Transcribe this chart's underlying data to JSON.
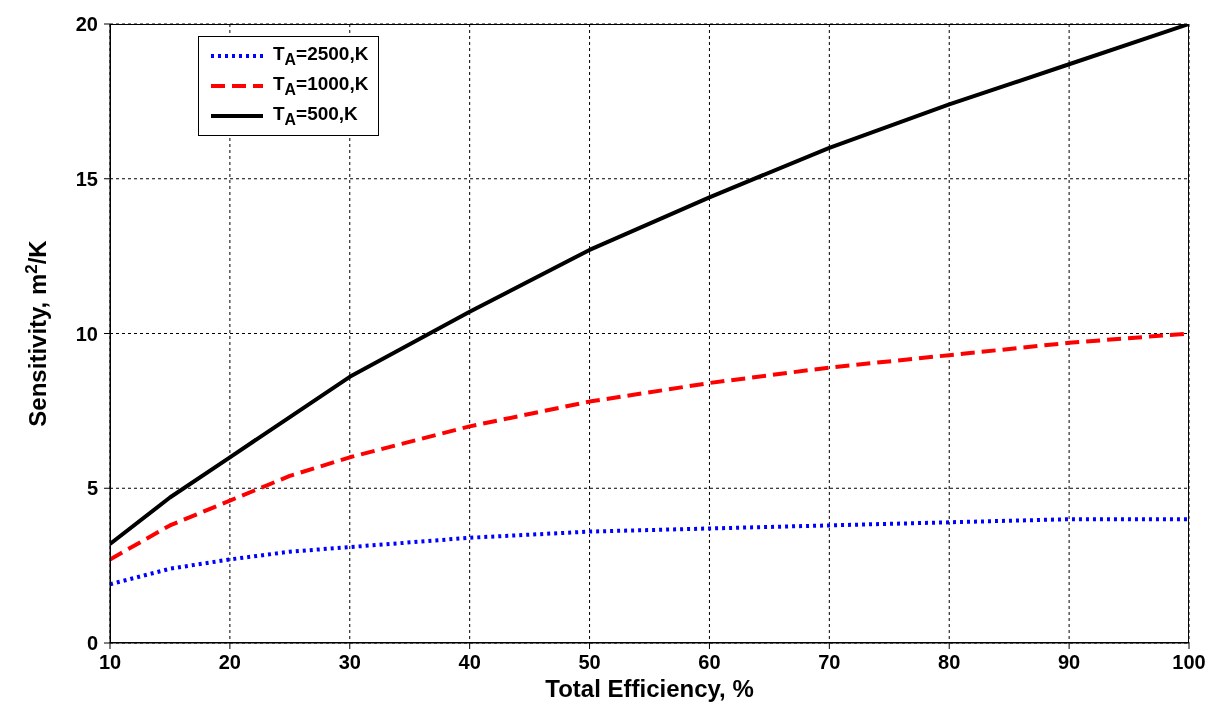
{
  "chart_data": {
    "type": "line",
    "xlabel": "Total Efficiency, %",
    "ylabel": "Sensitivity, m$^{2}$/K",
    "x": [
      10,
      15,
      20,
      25,
      30,
      40,
      50,
      60,
      70,
      80,
      90,
      100
    ],
    "series": [
      {
        "name": "T$_{A}$=2500,K",
        "color": "#0000ff",
        "line_style": "dotted",
        "values": [
          1.9,
          2.4,
          2.7,
          2.95,
          3.1,
          3.4,
          3.6,
          3.7,
          3.8,
          3.9,
          4.0,
          4.0
        ]
      },
      {
        "name": "T$_{A}$=1000,K",
        "color": "#ff0000",
        "line_style": "dashed",
        "values": [
          2.7,
          3.8,
          4.6,
          5.4,
          6.0,
          7.0,
          7.8,
          8.4,
          8.9,
          9.3,
          9.7,
          10.0
        ]
      },
      {
        "name": "T$_{A}$=500,K",
        "color": "#000000",
        "line_style": "solid",
        "values": [
          3.2,
          4.7,
          6.0,
          7.3,
          8.6,
          10.7,
          12.7,
          14.4,
          16.0,
          17.4,
          18.7,
          20.0
        ]
      }
    ],
    "xlim": [
      10,
      100
    ],
    "xticks": [
      10,
      20,
      30,
      40,
      50,
      60,
      70,
      80,
      90,
      100
    ],
    "ylim": [
      0,
      20
    ],
    "yticks": [
      0,
      5,
      10,
      15,
      20
    ],
    "grid": true,
    "legend": "top left",
    "marker": "none"
  }
}
